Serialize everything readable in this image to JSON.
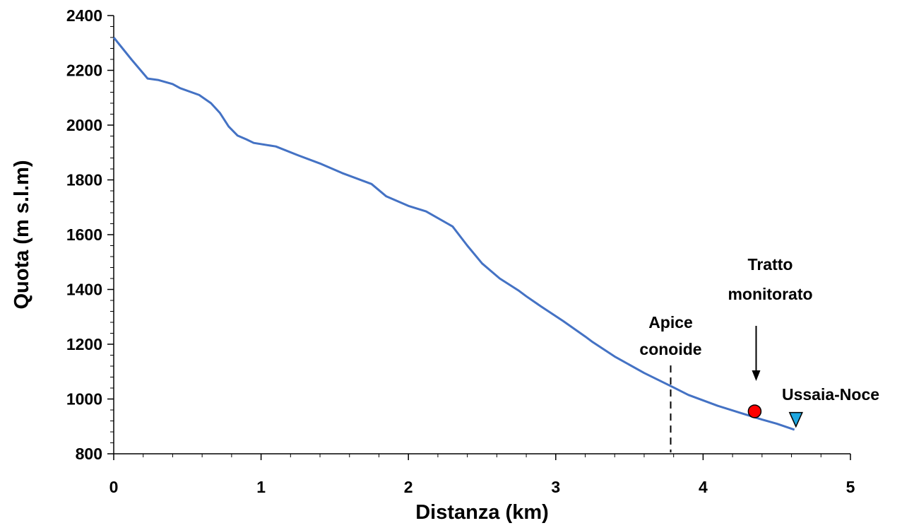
{
  "chart_data": {
    "type": "line",
    "xlabel": "Distanza (km)",
    "ylabel": "Quota (m s.l.m)",
    "xlim": [
      0,
      5
    ],
    "ylim": [
      800,
      2400
    ],
    "x_ticks": [
      0,
      1,
      2,
      3,
      4,
      5
    ],
    "y_ticks": [
      800,
      1000,
      1200,
      1400,
      1600,
      1800,
      2000,
      2200,
      2400
    ],
    "x_minor_step": 0.2,
    "y_minor_step": 40,
    "grid": false,
    "line_color": "#4472c4",
    "series": [
      {
        "x": [
          0,
          0.12,
          0.23,
          0.3,
          0.4,
          0.45,
          0.58,
          0.66,
          0.72,
          0.78,
          0.84,
          0.9,
          0.95,
          1.1,
          1.25,
          1.4,
          1.55,
          1.75,
          1.85,
          2.0,
          2.12,
          2.3,
          2.4,
          2.5,
          2.62,
          2.75,
          2.8,
          2.9,
          3.05,
          3.2,
          3.25,
          3.4,
          3.6,
          3.8,
          3.9,
          4.1,
          4.25,
          4.4,
          4.5,
          4.62
        ],
        "y": [
          2320,
          2240,
          2170,
          2165,
          2150,
          2135,
          2110,
          2080,
          2045,
          1995,
          1962,
          1948,
          1935,
          1922,
          1890,
          1860,
          1825,
          1785,
          1740,
          1705,
          1685,
          1630,
          1560,
          1495,
          1440,
          1395,
          1375,
          1338,
          1285,
          1228,
          1208,
          1155,
          1095,
          1042,
          1015,
          975,
          950,
          925,
          910,
          888
        ]
      }
    ],
    "annotations": {
      "apice_line_x": 3.78,
      "apice_label_1": "Apice",
      "apice_label_2": "conoide",
      "tratto_label_1": "Tratto",
      "tratto_label_2": "monitorato",
      "tratto_x": 4.36,
      "tratto_marker": {
        "shape": "circle",
        "x": 4.35,
        "y": 955,
        "color": "#ff0000"
      },
      "station_label": "Ussaia-Noce",
      "station_marker": {
        "shape": "triangle-down",
        "x": 4.63,
        "y": 925,
        "color": "#1ea7e0"
      }
    }
  }
}
